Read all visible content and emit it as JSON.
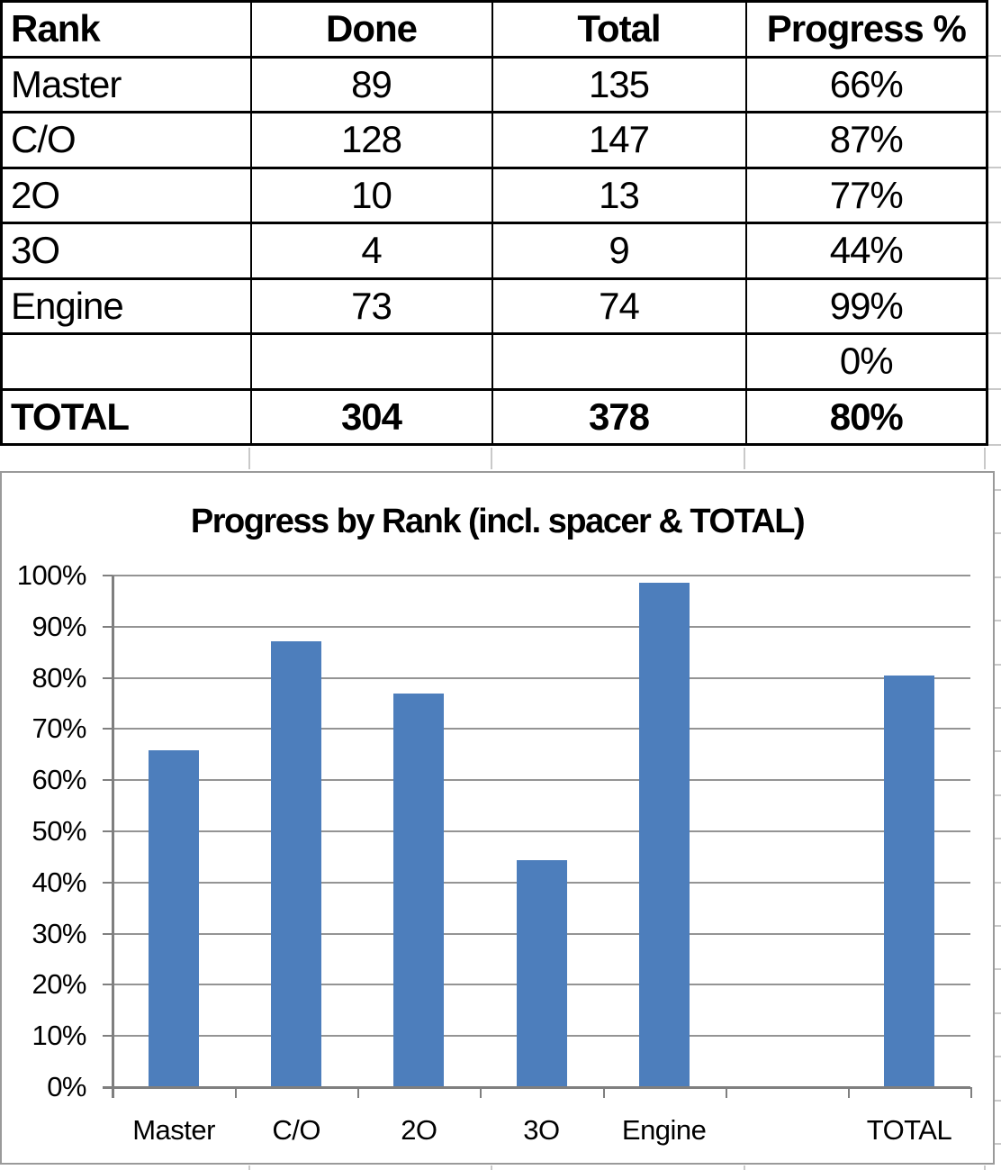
{
  "table": {
    "headers": [
      "Rank",
      "Done",
      "Total",
      "Progress %"
    ],
    "rows": [
      {
        "cells": [
          "Master",
          "89",
          "135",
          "66%"
        ],
        "bold": false
      },
      {
        "cells": [
          "C/O",
          "128",
          "147",
          "87%"
        ],
        "bold": false
      },
      {
        "cells": [
          "2O",
          "10",
          "13",
          "77%"
        ],
        "bold": false
      },
      {
        "cells": [
          "3O",
          "4",
          "9",
          "44%"
        ],
        "bold": false
      },
      {
        "cells": [
          "Engine",
          "73",
          "74",
          "99%"
        ],
        "bold": false
      },
      {
        "cells": [
          "",
          "",
          "",
          "0%"
        ],
        "bold": false
      },
      {
        "cells": [
          "TOTAL",
          "304",
          "378",
          "80%"
        ],
        "bold": true
      }
    ]
  },
  "chart_data": {
    "type": "bar",
    "title": "Progress by Rank (incl. spacer & TOTAL)",
    "categories": [
      "Master",
      "C/O",
      "2O",
      "3O",
      "Engine",
      "",
      "TOTAL"
    ],
    "values": [
      65.9,
      87.1,
      76.9,
      44.4,
      98.6,
      0,
      80.4
    ],
    "value_labels": [
      "66%",
      "87%",
      "77%",
      "44%",
      "99%",
      "0%",
      "80%"
    ],
    "xlabel": "",
    "ylabel": "",
    "ylim": [
      0,
      100
    ],
    "ytick_step": 10,
    "ytick_labels": [
      "0%",
      "10%",
      "20%",
      "30%",
      "40%",
      "50%",
      "60%",
      "70%",
      "80%",
      "90%",
      "100%"
    ],
    "grid": true,
    "legend": false,
    "bar_color": "#4D7EBC",
    "gridline_color": "#949494",
    "axis_color": "#7F7F7F"
  }
}
